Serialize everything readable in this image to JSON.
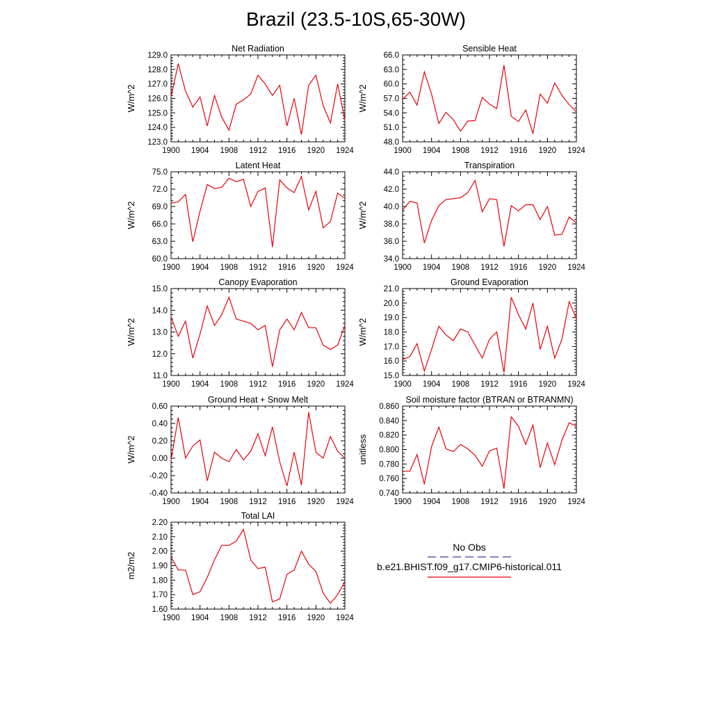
{
  "title": "Brazil (23.5-10S,65-30W)",
  "colors": {
    "model": "#e8000b",
    "obs": "#3a3a8c",
    "axis": "#000000"
  },
  "legend": {
    "obs_label": "No Obs",
    "model_label": "b.e21.BHIST.f09_g17.CMIP6-historical.011"
  },
  "chart_data": [
    {
      "type": "line",
      "title": "Net Radiation",
      "ylabel": "W/m^2",
      "xlim": [
        1900,
        1924
      ],
      "ylim": [
        123.0,
        129.0
      ],
      "xticks": [
        1900,
        1904,
        1908,
        1912,
        1916,
        1920,
        1924
      ],
      "xtick_labels": [
        "1900",
        "1904",
        "1908",
        "1912",
        "1916",
        "1920",
        "1924"
      ],
      "yticks": [
        123.0,
        124.0,
        125.0,
        126.0,
        127.0,
        128.0,
        129.0
      ],
      "ytick_labels": [
        "123.0",
        "124.0",
        "125.0",
        "126.0",
        "127.0",
        "128.0",
        "129.0"
      ],
      "yminor": 5,
      "series": [
        {
          "values": [
            126.1,
            128.4,
            126.5,
            125.4,
            126.1,
            124.1,
            126.2,
            124.7,
            123.8,
            125.6,
            125.9,
            126.3,
            127.6,
            127.0,
            126.2,
            126.9,
            124.1,
            126.0,
            123.5,
            126.9,
            127.6,
            125.5,
            124.3,
            127.0,
            124.5
          ]
        }
      ]
    },
    {
      "type": "line",
      "title": "Sensible Heat",
      "ylabel": "W/m^2",
      "xlim": [
        1900,
        1924
      ],
      "ylim": [
        48.0,
        66.0
      ],
      "xticks": [
        1900,
        1904,
        1908,
        1912,
        1916,
        1920,
        1924
      ],
      "xtick_labels": [
        "1900",
        "1904",
        "1908",
        "1912",
        "1916",
        "1920",
        "1924"
      ],
      "yticks": [
        48.0,
        51.0,
        54.0,
        57.0,
        60.0,
        63.0,
        66.0
      ],
      "ytick_labels": [
        "48.0",
        "51.0",
        "54.0",
        "57.0",
        "60.0",
        "63.0",
        "66.0"
      ],
      "yminor": 3,
      "series": [
        {
          "values": [
            56.8,
            58.3,
            55.6,
            62.5,
            57.9,
            51.8,
            54.1,
            52.6,
            50.2,
            52.3,
            52.4,
            57.2,
            55.8,
            54.9,
            63.9,
            53.3,
            52.2,
            54.6,
            49.7,
            57.9,
            56.0,
            60.2,
            57.6,
            55.7,
            54.2
          ]
        }
      ]
    },
    {
      "type": "line",
      "title": "Latent Heat",
      "ylabel": "W/m^2",
      "xlim": [
        1900,
        1924
      ],
      "ylim": [
        60.0,
        75.0
      ],
      "xticks": [
        1900,
        1904,
        1908,
        1912,
        1916,
        1920,
        1924
      ],
      "xtick_labels": [
        "1900",
        "1904",
        "1908",
        "1912",
        "1916",
        "1920",
        "1924"
      ],
      "yticks": [
        60.0,
        63.0,
        66.0,
        69.0,
        72.0,
        75.0
      ],
      "ytick_labels": [
        "60.0",
        "63.0",
        "66.0",
        "69.0",
        "72.0",
        "75.0"
      ],
      "yminor": 3,
      "series": [
        {
          "values": [
            69.6,
            69.8,
            71.1,
            62.9,
            68.2,
            72.8,
            72.1,
            72.3,
            73.9,
            73.3,
            73.7,
            69.0,
            71.6,
            72.2,
            62.0,
            73.6,
            72.2,
            71.4,
            74.2,
            68.4,
            71.6,
            65.3,
            66.4,
            71.3,
            70.4
          ]
        }
      ]
    },
    {
      "type": "line",
      "title": "Transpiration",
      "ylabel": "W/m^2",
      "xlim": [
        1900,
        1924
      ],
      "ylim": [
        34.0,
        44.0
      ],
      "xticks": [
        1900,
        1904,
        1908,
        1912,
        1916,
        1920,
        1924
      ],
      "xtick_labels": [
        "1900",
        "1904",
        "1908",
        "1912",
        "1916",
        "1920",
        "1924"
      ],
      "yticks": [
        34.0,
        36.0,
        38.0,
        40.0,
        42.0,
        44.0
      ],
      "ytick_labels": [
        "34.0",
        "36.0",
        "38.0",
        "40.0",
        "42.0",
        "44.0"
      ],
      "yminor": 4,
      "series": [
        {
          "values": [
            39.6,
            40.6,
            40.4,
            35.8,
            38.4,
            40.1,
            40.8,
            40.9,
            41.0,
            41.6,
            43.0,
            39.4,
            40.9,
            40.8,
            35.4,
            40.1,
            39.5,
            40.2,
            40.2,
            38.5,
            40.0,
            36.7,
            36.8,
            38.8,
            38.1
          ]
        }
      ]
    },
    {
      "type": "line",
      "title": "Canopy Evaporation",
      "ylabel": "W/m^2",
      "xlim": [
        1900,
        1924
      ],
      "ylim": [
        11.0,
        15.0
      ],
      "xticks": [
        1900,
        1904,
        1908,
        1912,
        1916,
        1920,
        1924
      ],
      "xtick_labels": [
        "1900",
        "1904",
        "1908",
        "1912",
        "1916",
        "1920",
        "1924"
      ],
      "yticks": [
        11.0,
        12.0,
        13.0,
        14.0,
        15.0
      ],
      "ytick_labels": [
        "11.0",
        "12.0",
        "13.0",
        "14.0",
        "15.0"
      ],
      "yminor": 5,
      "series": [
        {
          "values": [
            13.7,
            12.8,
            13.5,
            11.8,
            12.9,
            14.2,
            13.3,
            13.8,
            14.6,
            13.6,
            13.5,
            13.4,
            13.1,
            13.3,
            11.4,
            13.1,
            13.6,
            13.1,
            13.9,
            13.2,
            13.2,
            12.4,
            12.2,
            12.4,
            13.3
          ]
        }
      ]
    },
    {
      "type": "line",
      "title": "Ground Evaporation",
      "ylabel": "W/m^2",
      "xlim": [
        1900,
        1924
      ],
      "ylim": [
        15.0,
        21.0
      ],
      "xticks": [
        1900,
        1904,
        1908,
        1912,
        1916,
        1920,
        1924
      ],
      "xtick_labels": [
        "1900",
        "1904",
        "1908",
        "1912",
        "1916",
        "1920",
        "1924"
      ],
      "yticks": [
        15.0,
        16.0,
        17.0,
        18.0,
        19.0,
        20.0,
        21.0
      ],
      "ytick_labels": [
        "15.0",
        "16.0",
        "17.0",
        "18.0",
        "19.0",
        "20.0",
        "21.0"
      ],
      "yminor": 5,
      "series": [
        {
          "values": [
            16.1,
            16.3,
            17.2,
            15.3,
            16.8,
            18.4,
            17.8,
            17.4,
            18.2,
            18.0,
            17.1,
            16.2,
            17.5,
            18.0,
            15.2,
            20.4,
            19.2,
            18.2,
            20.0,
            16.8,
            18.4,
            16.2,
            17.5,
            20.1,
            18.9
          ]
        }
      ]
    },
    {
      "type": "line",
      "title": "Ground Heat + Snow Melt",
      "ylabel": "W/m^2",
      "xlim": [
        1900,
        1924
      ],
      "ylim": [
        -0.4,
        0.6
      ],
      "xticks": [
        1900,
        1904,
        1908,
        1912,
        1916,
        1920,
        1924
      ],
      "xtick_labels": [
        "1900",
        "1904",
        "1908",
        "1912",
        "1916",
        "1920",
        "1924"
      ],
      "yticks": [
        -0.4,
        -0.2,
        0.0,
        0.2,
        0.4,
        0.6
      ],
      "ytick_labels": [
        "-0.40",
        "-0.20",
        "0.00",
        "0.20",
        "0.40",
        "0.60"
      ],
      "yminor": 4,
      "series": [
        {
          "values": [
            -0.02,
            0.47,
            0.0,
            0.14,
            0.21,
            -0.26,
            0.07,
            0.0,
            -0.04,
            0.1,
            -0.02,
            0.08,
            0.28,
            0.03,
            0.36,
            -0.04,
            -0.32,
            0.07,
            -0.31,
            0.53,
            0.07,
            0.0,
            0.25,
            0.08,
            0.0
          ]
        }
      ]
    },
    {
      "type": "line",
      "title": "Soil moisture factor (BTRAN or BTRANMN)",
      "ylabel": "unitless",
      "xlim": [
        1900,
        1924
      ],
      "ylim": [
        0.74,
        0.86
      ],
      "xticks": [
        1900,
        1904,
        1908,
        1912,
        1916,
        1920,
        1924
      ],
      "xtick_labels": [
        "1900",
        "1904",
        "1908",
        "1912",
        "1916",
        "1920",
        "1924"
      ],
      "yticks": [
        0.74,
        0.76,
        0.78,
        0.8,
        0.82,
        0.84,
        0.86
      ],
      "ytick_labels": [
        "0.740",
        "0.760",
        "0.780",
        "0.800",
        "0.820",
        "0.840",
        "0.860"
      ],
      "yminor": 4,
      "series": [
        {
          "values": [
            0.77,
            0.77,
            0.793,
            0.752,
            0.804,
            0.831,
            0.801,
            0.797,
            0.807,
            0.801,
            0.792,
            0.777,
            0.798,
            0.802,
            0.746,
            0.845,
            0.832,
            0.807,
            0.834,
            0.775,
            0.809,
            0.779,
            0.813,
            0.837,
            0.832
          ]
        }
      ]
    },
    {
      "type": "line",
      "title": "Total LAI",
      "ylabel": "m2/m2",
      "xlim": [
        1900,
        1924
      ],
      "ylim": [
        1.6,
        2.2
      ],
      "xticks": [
        1900,
        1904,
        1908,
        1912,
        1916,
        1920,
        1924
      ],
      "xtick_labels": [
        "1900",
        "1904",
        "1908",
        "1912",
        "1916",
        "1920",
        "1924"
      ],
      "yticks": [
        1.6,
        1.7,
        1.8,
        1.9,
        2.0,
        2.1,
        2.2
      ],
      "ytick_labels": [
        "1.60",
        "1.70",
        "1.80",
        "1.90",
        "2.00",
        "2.10",
        "2.20"
      ],
      "yminor": 5,
      "series": [
        {
          "values": [
            1.96,
            1.87,
            1.87,
            1.7,
            1.72,
            1.82,
            1.94,
            2.04,
            2.04,
            2.07,
            2.15,
            1.94,
            1.88,
            1.89,
            1.65,
            1.67,
            1.84,
            1.87,
            2.0,
            1.91,
            1.86,
            1.71,
            1.64,
            1.7,
            1.79
          ]
        }
      ]
    }
  ]
}
